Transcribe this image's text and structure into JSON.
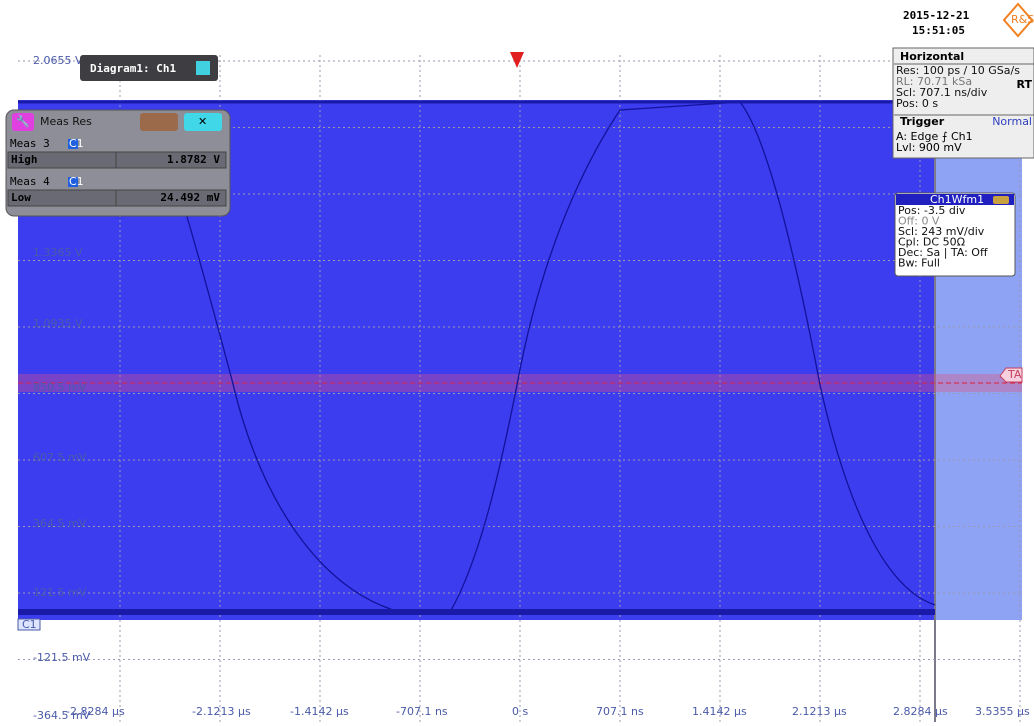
{
  "header": {
    "date": "2015-12-21",
    "time": "15:51:05",
    "logo": "R&S"
  },
  "diagram": {
    "tab": "Diagram1: Ch1",
    "y_labels": [
      "2.0655 V",
      "1.3365 V",
      "1.0935 V",
      "850.5 mV",
      "607.5 mV",
      "364.5 mV",
      "121.5 mV",
      "-121.5 mV",
      "-364.5 mV"
    ],
    "x_labels": [
      "-2.8284 µs",
      "-2.1213 µs",
      "-1.4142 µs",
      "-707.1 ns",
      "0 s",
      "707.1 ns",
      "1.4142 µs",
      "2.1213 µs",
      "2.8284 µs",
      "3.5355 µs"
    ],
    "channel_marker": "C1",
    "trigger_marker": "TA"
  },
  "meas": {
    "title": "Meas Res",
    "groups": [
      {
        "name": "Meas 3",
        "badge": "C1",
        "label": "High",
        "value": "1.8782 V"
      },
      {
        "name": "Meas 4",
        "badge": "C1",
        "label": "Low",
        "value": "24.492 mV"
      }
    ]
  },
  "horizontal": {
    "title": "Horizontal",
    "lines": [
      "Res: 100 ps / 10 GSa/s",
      "RL:  70.71 kSa",
      "Scl:  707.1 ns/div",
      "Pos: 0 s"
    ],
    "mode": "RT"
  },
  "trigger": {
    "title": "Trigger",
    "mode": "Normal",
    "lines": [
      "A:   Edge ⨍ Ch1",
      "Lvl:  900 mV"
    ]
  },
  "channel": {
    "title": "Ch1Wfm1",
    "lines": [
      "Pos: -3.5 div",
      "Off: 0 V",
      "Scl:  243 mV/div",
      "Cpl: DC 50Ω",
      "Dec: Sa | TA: Off",
      "Bw: Full"
    ]
  }
}
